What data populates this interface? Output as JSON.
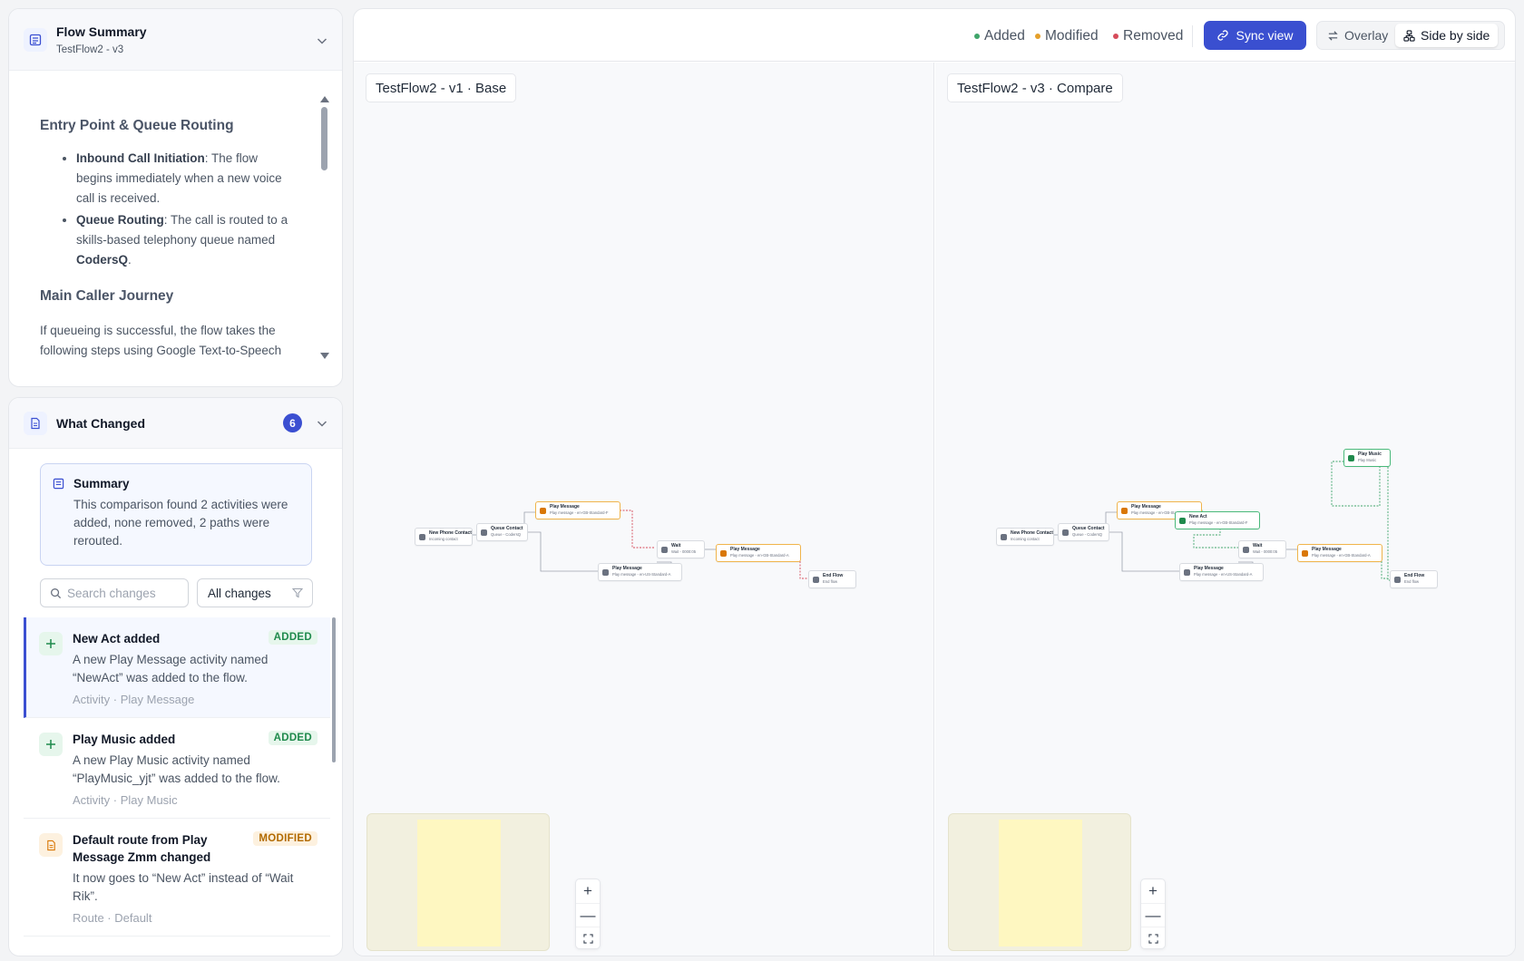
{
  "flow_summary": {
    "title": "Flow Summary",
    "subtitle": "TestFlow2 - v3",
    "section1_title": "Entry Point & Queue Routing",
    "bullets": [
      {
        "label": "Inbound Call Initiation",
        "text": ": The flow begins immediately when a new voice call is received."
      },
      {
        "label": "Queue Routing",
        "text": ": The call is routed to a skills-based telephony queue named ",
        "emph": "CodersQ",
        "tail": "."
      }
    ],
    "section2_title": "Main Caller Journey",
    "section2_text": "If queueing is successful, the flow takes the following steps using Google Text-to-Speech"
  },
  "what_changed": {
    "title": "What Changed",
    "count": "6",
    "summary_title": "Summary",
    "summary_text": "This comparison found 2 activities were added, none removed, 2 paths were rerouted.",
    "search_placeholder": "Search changes",
    "filter_value": "All changes",
    "items": [
      {
        "title": "New Act added",
        "badge": "ADDED",
        "desc": "A new Play Message activity named “NewAct” was added to the flow.",
        "meta": "Activity · Play Message"
      },
      {
        "title": "Play Music added",
        "badge": "ADDED",
        "desc": "A new Play Music activity named “PlayMusic_yjt” was added to the flow.",
        "meta": "Activity · Play Music"
      },
      {
        "title": "Default route from Play Message Zmm changed",
        "badge": "MODIFIED",
        "desc": "It now goes to “New Act” instead of “Wait Rik”.",
        "meta": "Route · Default"
      }
    ]
  },
  "toolbar": {
    "legend_added": "Added",
    "legend_modified": "Modified",
    "legend_removed": "Removed",
    "sync_label": "Sync view",
    "overlay_label": "Overlay",
    "side_by_side_label": "Side by side"
  },
  "colors": {
    "added": "#3fa56a",
    "modified": "#e5a02b",
    "removed": "#d64b5a",
    "accent": "#3a4fd0"
  },
  "panes": {
    "base_label": "TestFlow2 - v1 · Base",
    "compare_label": "TestFlow2 - v3 · Compare"
  },
  "zoom": {
    "in": "+",
    "out": "—"
  },
  "nodes": {
    "new_phone_contact": {
      "title": "New Phone Contact",
      "sub": "Incoming contact"
    },
    "queue_contact": {
      "title": "Queue Contact",
      "sub": "Queue - CodersQ"
    },
    "play_message_1": {
      "title": "Play Message",
      "sub": "Play message - en-GB-Standard-F"
    },
    "play_message_2": {
      "title": "Play Message",
      "sub": "Play message - en-US-Standard-A"
    },
    "wait": {
      "title": "Wait",
      "sub": "Wait - 0000:05"
    },
    "play_message_3": {
      "title": "Play Message",
      "sub": "Play message - en-GB-Standard-A"
    },
    "end_flow": {
      "title": "End Flow",
      "sub": "End flow"
    },
    "new_act": {
      "title": "New Act",
      "sub": "Play message - en-GB-Standard-F"
    },
    "play_music": {
      "title": "Play Music",
      "sub": "Play Music"
    }
  }
}
